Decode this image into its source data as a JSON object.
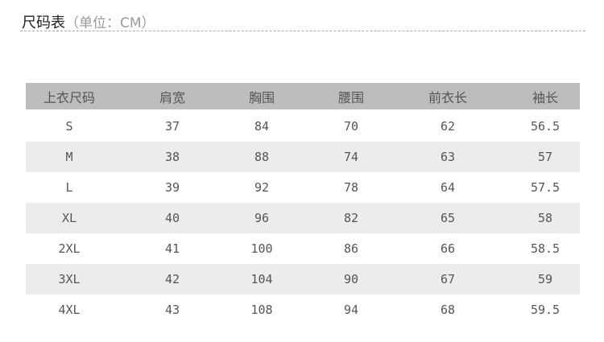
{
  "title": {
    "main": "尺码表",
    "unit": "（单位：CM）"
  },
  "table": {
    "headers": [
      "上衣尺码",
      "肩宽",
      "胸围",
      "腰围",
      "前衣长",
      "袖长"
    ],
    "rows": [
      [
        "S",
        "37",
        "84",
        "70",
        "62",
        "56.5"
      ],
      [
        "M",
        "38",
        "88",
        "74",
        "63",
        "57"
      ],
      [
        "L",
        "39",
        "92",
        "78",
        "64",
        "57.5"
      ],
      [
        "XL",
        "40",
        "96",
        "82",
        "65",
        "58"
      ],
      [
        "2XL",
        "41",
        "100",
        "86",
        "66",
        "58.5"
      ],
      [
        "3XL",
        "42",
        "104",
        "90",
        "67",
        "59"
      ],
      [
        "4XL",
        "43",
        "108",
        "94",
        "68",
        "59.5"
      ]
    ]
  },
  "colors": {
    "header_bg": "#bdbdbd",
    "alt_row_bg": "#ececec",
    "text": "#555555"
  }
}
